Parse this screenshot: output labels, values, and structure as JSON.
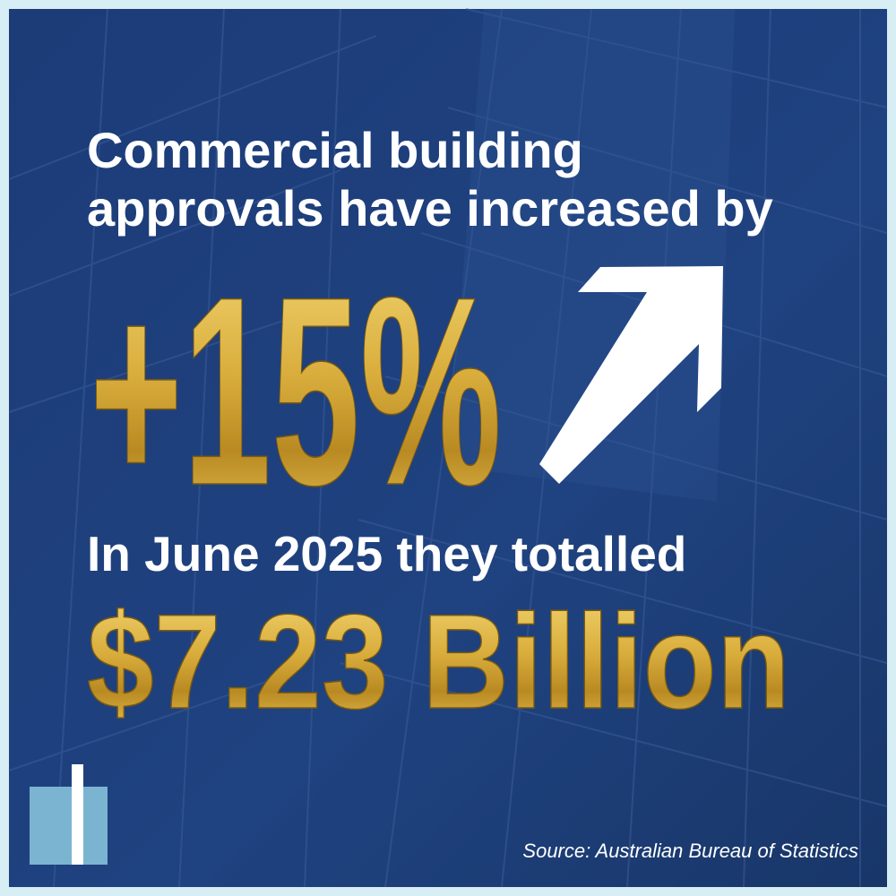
{
  "headline": {
    "lines": [
      "Commercial building",
      "approvals have increased by"
    ]
  },
  "increase": "+15%",
  "subline": "In June 2025 they totalled",
  "total": "$7.23 Billion",
  "source": "Source: Australian Bureau of Statistics"
}
